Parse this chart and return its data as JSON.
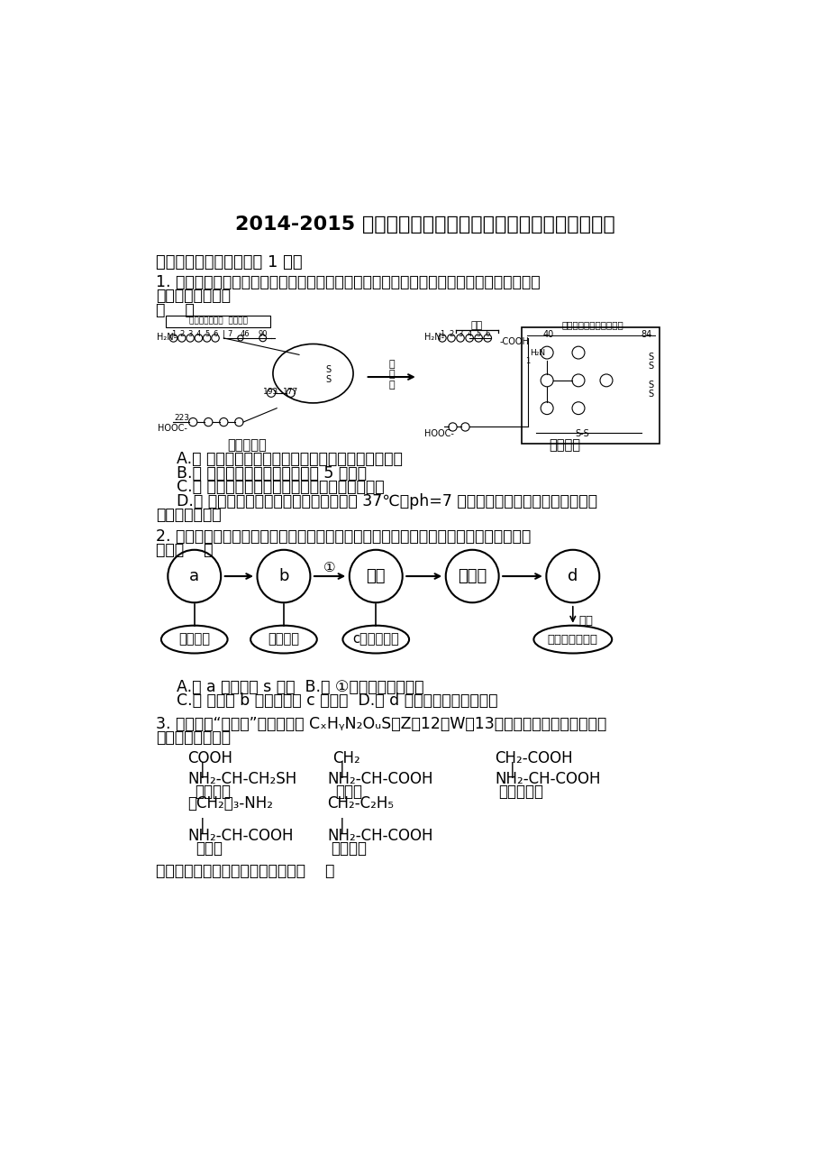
{
  "title": "2014-2015 学年吉林省长春十一中高二（下）期末生物试卷",
  "background_color": "#ffffff",
  "section1_title": "一．选择题（单选，每题 1 分）",
  "q1_line1": "1. 由胰腺合成的胰蛋白酶原，可在肠激酵的作用下形成活性的胰蛋白酶，其过程如图所示．",
  "q1_line2": "下列分析正确的是",
  "q1_line3": "（    ）",
  "q1_optA": "A.　 肠激酵与胰蛋白酶原的特定部位结合以发挥效应",
  "q1_optB": "B.　 胰蛋白酶比胰蛋白酶原少了 5 个肽键",
  "q1_optC": "C.　 图中环状结构形成的原因与二硫键直接相关",
  "q1_optD1": "D.　 用胰蛋白酶及等量的胃蛋白酶分别在 37℃、ph=7 的条件下处理同样大小的蛋白块，",
  "q1_optD2": "前者消失的较快",
  "q2_line1": "2. 蛋白质是生命活动的主要承担者．如图为蛋白质结构与功能的概念图，对图示分析正确",
  "q2_line2": "的是（    ）",
  "q2_optAB": "A.　 a 一定不含 s 元素  B.　 ①过程一定有水生成",
  "q2_optCD": "C.　 多肽中 b 的数目等于 c 的数目  D.　 d 表示空间结构的多样性",
  "q3_line1": "3. 现有一种“十二肽”，分子式为 CₓHᵧN₂OᵤS（Z＞12，W＞13）．已知将它彻底水解后只",
  "q3_line2": "得到下列氨基酸．",
  "q3_last": "下列对以上内容的叙述正确的是：（    ）"
}
